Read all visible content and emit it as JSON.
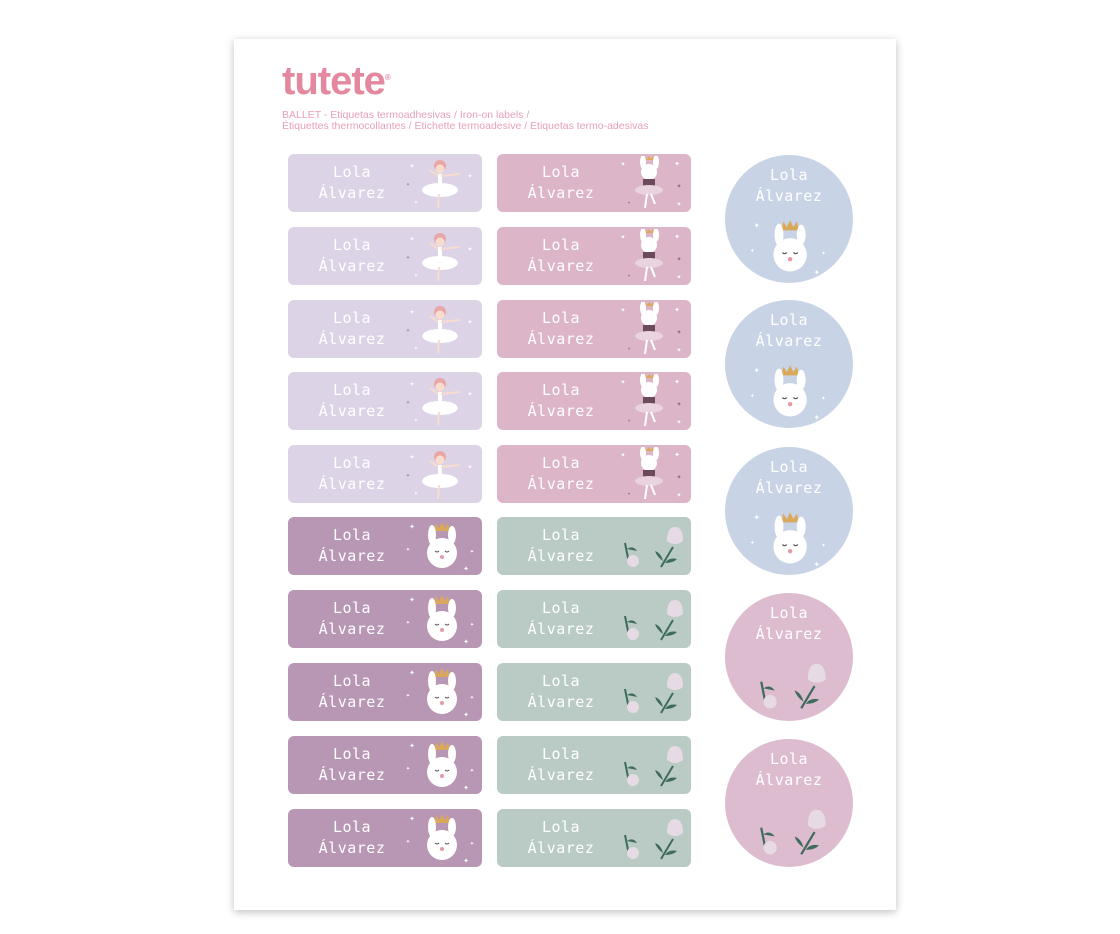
{
  "brand": {
    "logo": "tutete",
    "registered": "®"
  },
  "subtitle": {
    "line1": "BALLET - Etiquetas termoadhesivas / Iron-on labels /",
    "line2": "Étiquettes thermocollantes / Etichette termoadesive / Etiquetas termo-adesivas"
  },
  "colors": {
    "brand_pink": "#e3889e",
    "lavender": "#ddd3e6",
    "pink": "#dcb5c8",
    "mauve": "#b797b4",
    "sage": "#b9cbc4",
    "blue": "#c9d3e6",
    "rose": "#ddbcd0"
  },
  "label_name": {
    "first": "Lola",
    "last": "Álvarez"
  },
  "rect_labels": [
    {
      "column": 1,
      "rows": 5,
      "theme": "lavender",
      "icon": "ballerina-icon"
    },
    {
      "column": 2,
      "rows": 5,
      "theme": "pink",
      "icon": "ballet-bunny-icon"
    },
    {
      "column": 1,
      "rows": 5,
      "theme": "mauve",
      "icon": "bunny-crown-icon"
    },
    {
      "column": 2,
      "rows": 5,
      "theme": "sage",
      "icon": "flowers-icon"
    }
  ],
  "round_labels": [
    {
      "theme": "blue",
      "icon": "bunny-crown-icon"
    },
    {
      "theme": "blue",
      "icon": "bunny-crown-icon"
    },
    {
      "theme": "blue",
      "icon": "bunny-crown-icon"
    },
    {
      "theme": "rose",
      "icon": "flowers-icon"
    },
    {
      "theme": "rose",
      "icon": "flowers-icon"
    }
  ]
}
